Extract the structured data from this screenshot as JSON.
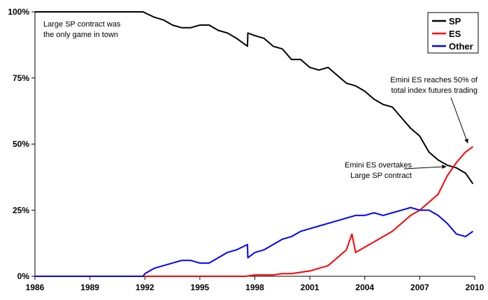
{
  "chart_data": {
    "type": "line",
    "title": "",
    "xlabel": "",
    "ylabel": "",
    "xlim": [
      1986,
      2010
    ],
    "ylim": [
      0,
      100
    ],
    "x_ticks": [
      1986,
      1989,
      1992,
      1995,
      1998,
      2001,
      2004,
      2007,
      2010
    ],
    "y_ticks": [
      0,
      25,
      50,
      75,
      100
    ],
    "x_tick_labels": [
      "1986",
      "1989",
      "1992",
      "1995",
      "1998",
      "2001",
      "2004",
      "2007",
      "2010"
    ],
    "y_tick_labels": [
      "0%",
      "25%",
      "50%",
      "75%",
      "100%"
    ],
    "grid": false,
    "legend": {
      "position": "top-right",
      "entries": [
        "SP",
        "ES",
        "Other"
      ]
    },
    "series": [
      {
        "name": "SP",
        "color": "#000000",
        "x": [
          1986,
          1991.9,
          1992.5,
          1993,
          1993.5,
          1994,
          1994.5,
          1995,
          1995.5,
          1996,
          1996.5,
          1997,
          1997.6,
          1997.62,
          1998,
          1998.5,
          1999,
          1999.5,
          2000,
          2000.5,
          2001,
          2001.5,
          2002,
          2002.5,
          2003,
          2003.5,
          2004,
          2004.5,
          2005,
          2005.5,
          2006,
          2006.5,
          2007,
          2007.5,
          2008,
          2008.5,
          2009,
          2009.5,
          2009.9
        ],
        "values": [
          100,
          100,
          98,
          97,
          95,
          94,
          94,
          95,
          95,
          93,
          92,
          90,
          87,
          92,
          91,
          90,
          87,
          86,
          82,
          82,
          79,
          78,
          79,
          76,
          73,
          72,
          70,
          67,
          65,
          64,
          60,
          56,
          53,
          47,
          44,
          42,
          41,
          39,
          35
        ]
      },
      {
        "name": "ES",
        "color": "#ff0000",
        "x": [
          1986,
          1997.5,
          1998,
          1998.5,
          1999,
          1999.5,
          2000,
          2000.5,
          2001,
          2001.5,
          2002,
          2002.5,
          2003,
          2003.3,
          2003.5,
          2004,
          2004.5,
          2005,
          2005.5,
          2006,
          2006.5,
          2007,
          2007.5,
          2008,
          2008.5,
          2009,
          2009.5,
          2009.9
        ],
        "values": [
          0,
          0,
          0.5,
          0.5,
          0.5,
          1,
          1,
          1.5,
          2,
          3,
          4,
          7,
          10,
          16,
          9,
          11,
          13,
          15,
          17,
          20,
          23,
          25,
          28,
          31,
          38,
          43,
          47,
          49
        ]
      },
      {
        "name": "Other",
        "color": "#0000ff",
        "x": [
          1986,
          1991.9,
          1992,
          1992.5,
          1993,
          1993.5,
          1994,
          1994.5,
          1995,
          1995.5,
          1996,
          1996.5,
          1997,
          1997.6,
          1997.62,
          1998,
          1998.5,
          1999,
          1999.5,
          2000,
          2000.5,
          2001,
          2001.5,
          2002,
          2002.5,
          2003,
          2003.5,
          2004,
          2004.5,
          2005,
          2005.5,
          2006,
          2006.5,
          2007,
          2007.5,
          2008,
          2008.5,
          2009,
          2009.5,
          2009.9
        ],
        "values": [
          0,
          0,
          1,
          3,
          4,
          5,
          6,
          6,
          5,
          5,
          7,
          9,
          10,
          12,
          7,
          9,
          10,
          12,
          14,
          15,
          17,
          18,
          19,
          20,
          21,
          22,
          23,
          23,
          24,
          23,
          24,
          25,
          26,
          25,
          25,
          23,
          20,
          16,
          15,
          17
        ]
      }
    ],
    "annotations": [
      {
        "text_lines": [
          "Large SP contract was",
          "the only game in town"
        ]
      },
      {
        "text_lines": [
          "Emini ES reaches 50% of",
          "total index futures trading"
        ],
        "arrow_to": [
          2009.7,
          49
        ]
      },
      {
        "text_lines": [
          "Emini ES overtakes",
          "Large SP contract"
        ],
        "arrow_to": [
          2008.6,
          41.5
        ]
      }
    ]
  }
}
